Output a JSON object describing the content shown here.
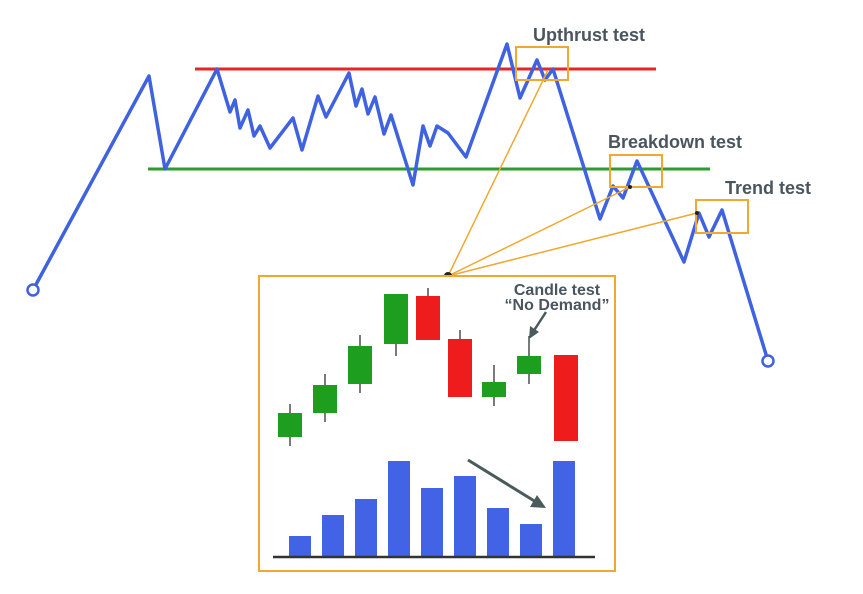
{
  "labels": {
    "upthrust": "Upthrust test",
    "breakdown": "Breakdown test",
    "trend": "Trend test",
    "candle_line1": "Candle test",
    "candle_line2": "“No Demand”"
  },
  "colors": {
    "price_line": "#3f63e0",
    "resistance": "#e42626",
    "support": "#2a9d2a",
    "highlight": "#f0a830",
    "bull_candle": "#1e9e1e",
    "bear_candle": "#ee1c1c",
    "volume_bar": "#4363e6",
    "axis": "#333333",
    "arrow": "#4b5a5a",
    "label_text": "#4a5560"
  }
}
